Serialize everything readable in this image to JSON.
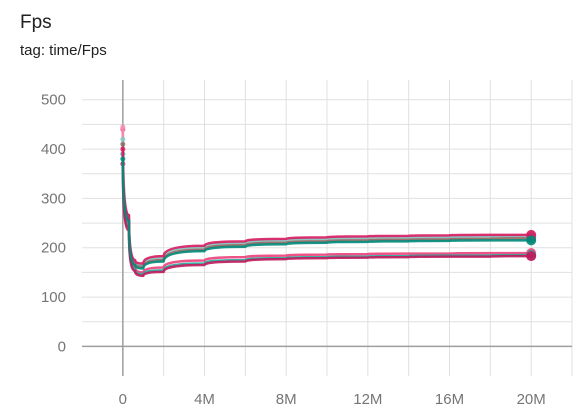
{
  "card": {
    "title": "Fps",
    "subtitle": "tag: time/Fps"
  },
  "chart_data": {
    "type": "line",
    "title": "Fps",
    "subtitle": "tag: time/Fps",
    "xlabel": "",
    "ylabel": "",
    "xlim": [
      -2000000,
      22000000
    ],
    "ylim": [
      -60,
      540
    ],
    "x_ticks": [
      0,
      2000000,
      4000000,
      6000000,
      8000000,
      10000000,
      12000000,
      14000000,
      16000000,
      18000000,
      20000000,
      22000000
    ],
    "x_tick_labels": [
      "0",
      "",
      "4M",
      "",
      "8M",
      "",
      "12M",
      "",
      "16M",
      "",
      "20M",
      ""
    ],
    "y_ticks": [
      0,
      50,
      100,
      150,
      200,
      250,
      300,
      350,
      400,
      450,
      500
    ],
    "y_tick_labels": [
      "0",
      "",
      "100",
      "",
      "200",
      "",
      "300",
      "",
      "400",
      "",
      "500"
    ],
    "grid": true,
    "legend": "none",
    "series": [
      {
        "color": "#ec407a",
        "x": [
          0,
          300000,
          600000,
          1000000,
          2000000,
          4000000,
          6000000,
          8000000,
          10000000,
          12000000,
          14000000,
          16000000,
          18000000,
          20000000
        ],
        "values": [
          440,
          250,
          160,
          150,
          160,
          174,
          181,
          184,
          186,
          187,
          188,
          188,
          189,
          189
        ]
      },
      {
        "color": "#26a69a",
        "x": [
          0,
          300000,
          600000,
          1000000,
          2000000,
          4000000,
          6000000,
          8000000,
          10000000,
          12000000,
          14000000,
          16000000,
          18000000,
          20000000
        ],
        "values": [
          390,
          240,
          156,
          146,
          154,
          168,
          175,
          179,
          181,
          182,
          183,
          184,
          184,
          185
        ]
      },
      {
        "color": "#c2185b",
        "x": [
          0,
          300000,
          600000,
          1000000,
          2000000,
          4000000,
          6000000,
          8000000,
          10000000,
          12000000,
          14000000,
          16000000,
          18000000,
          20000000
        ],
        "values": [
          370,
          235,
          153,
          143,
          151,
          165,
          172,
          177,
          179,
          180,
          181,
          182,
          182,
          183
        ]
      },
      {
        "color": "#f48fb1",
        "x": [
          0,
          300000,
          600000,
          1000000,
          2000000,
          4000000,
          6000000,
          8000000,
          10000000,
          12000000,
          14000000,
          16000000,
          18000000,
          20000000
        ],
        "values": [
          445,
          265,
          172,
          165,
          178,
          199,
          208,
          213,
          216,
          218,
          219,
          220,
          221,
          222
        ]
      },
      {
        "color": "#80cbc4",
        "x": [
          0,
          300000,
          600000,
          1000000,
          2000000,
          4000000,
          6000000,
          8000000,
          10000000,
          12000000,
          14000000,
          16000000,
          18000000,
          20000000
        ],
        "values": [
          420,
          262,
          170,
          164,
          180,
          201,
          210,
          215,
          218,
          220,
          221,
          222,
          223,
          224
        ]
      },
      {
        "color": "#8d6e63",
        "x": [
          0,
          300000,
          600000,
          1000000,
          2000000,
          4000000,
          6000000,
          8000000,
          10000000,
          12000000,
          14000000,
          16000000,
          18000000,
          20000000
        ],
        "values": [
          410,
          258,
          168,
          161,
          175,
          196,
          205,
          210,
          213,
          215,
          216,
          217,
          218,
          219
        ]
      },
      {
        "color": "#d81b60",
        "x": [
          0,
          300000,
          600000,
          1000000,
          2000000,
          4000000,
          6000000,
          8000000,
          10000000,
          12000000,
          14000000,
          16000000,
          18000000,
          20000000
        ],
        "values": [
          400,
          266,
          175,
          168,
          183,
          204,
          213,
          218,
          221,
          223,
          224,
          225,
          226,
          226
        ]
      },
      {
        "color": "#00897b",
        "x": [
          0,
          300000,
          600000,
          1000000,
          2000000,
          4000000,
          6000000,
          8000000,
          10000000,
          12000000,
          14000000,
          16000000,
          18000000,
          20000000
        ],
        "values": [
          380,
          255,
          165,
          158,
          172,
          193,
          202,
          207,
          210,
          212,
          213,
          214,
          215,
          215
        ]
      }
    ]
  }
}
